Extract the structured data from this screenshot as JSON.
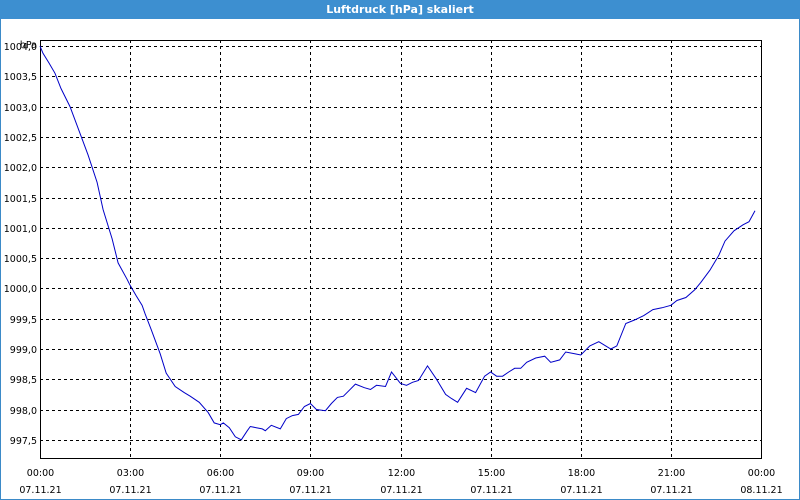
{
  "window": {
    "title": "Luftdruck [hPa] skaliert"
  },
  "chart_data": {
    "type": "line",
    "title": "Luftdruck [hPa] skaliert",
    "ylabel": "hPa",
    "xlabel": "",
    "ylim": [
      997.2,
      1004.1
    ],
    "xlim_hours": [
      0,
      24
    ],
    "grid": true,
    "y_ticks": [
      "1004,0",
      "1003,5",
      "1003,0",
      "1002,5",
      "1002,0",
      "1001,5",
      "1001,0",
      "1000,5",
      "1000,0",
      "999,5",
      "999,0",
      "998,5",
      "998,0",
      "997,5"
    ],
    "x_ticks": [
      {
        "time": "00:00",
        "date": "07.11.21"
      },
      {
        "time": "03:00",
        "date": "07.11.21"
      },
      {
        "time": "06:00",
        "date": "07.11.21"
      },
      {
        "time": "09:00",
        "date": "07.11.21"
      },
      {
        "time": "12:00",
        "date": "07.11.21"
      },
      {
        "time": "15:00",
        "date": "07.11.21"
      },
      {
        "time": "18:00",
        "date": "07.11.21"
      },
      {
        "time": "21:00",
        "date": "07.11.21"
      },
      {
        "time": "00:00",
        "date": "08.11.21"
      }
    ],
    "series": [
      {
        "color": "#0000c8",
        "x": [
          0.0,
          0.1,
          0.3,
          0.5,
          0.7,
          1.0,
          1.3,
          1.6,
          1.9,
          2.1,
          2.4,
          2.6,
          2.9,
          3.0,
          3.2,
          3.4,
          3.5,
          3.7,
          4.0,
          4.2,
          4.5,
          4.8,
          5.0,
          5.3,
          5.6,
          5.8,
          6.0,
          6.1,
          6.3,
          6.5,
          6.7,
          6.9,
          7.0,
          7.2,
          7.4,
          7.5,
          7.7,
          8.0,
          8.2,
          8.4,
          8.6,
          8.8,
          9.0,
          9.2,
          9.5,
          9.7,
          9.9,
          10.1,
          10.3,
          10.5,
          10.8,
          11.0,
          11.2,
          11.5,
          11.7,
          12.0,
          12.2,
          12.4,
          12.6,
          12.9,
          13.2,
          13.5,
          13.7,
          13.9,
          14.2,
          14.5,
          14.8,
          15.0,
          15.2,
          15.4,
          15.6,
          15.8,
          16.0,
          16.2,
          16.5,
          16.8,
          17.0,
          17.3,
          17.5,
          17.8,
          18.0,
          18.3,
          18.6,
          19.0,
          19.2,
          19.5,
          19.8,
          20.1,
          20.4,
          20.7,
          21.0,
          21.2,
          21.5,
          21.8,
          22.0,
          22.3,
          22.6,
          22.8,
          23.1,
          23.4,
          23.6,
          23.8
        ],
        "values": [
          1004.0,
          1003.88,
          1003.72,
          1003.55,
          1003.3,
          1003.0,
          1002.6,
          1002.2,
          1001.75,
          1001.3,
          1000.82,
          1000.42,
          1000.15,
          1000.05,
          999.88,
          999.72,
          999.58,
          999.32,
          998.92,
          998.6,
          998.38,
          998.28,
          998.22,
          998.12,
          997.95,
          997.78,
          997.75,
          997.78,
          997.7,
          997.55,
          997.5,
          997.65,
          997.72,
          997.7,
          997.68,
          997.65,
          997.74,
          997.68,
          997.85,
          997.9,
          997.92,
          998.05,
          998.1,
          998.0,
          997.98,
          998.1,
          998.2,
          998.22,
          998.32,
          998.42,
          998.36,
          998.33,
          998.4,
          998.38,
          998.62,
          998.43,
          998.4,
          998.45,
          998.48,
          998.72,
          998.5,
          998.25,
          998.18,
          998.12,
          998.35,
          998.28,
          998.55,
          998.62,
          998.55,
          998.55,
          998.62,
          998.68,
          998.68,
          998.78,
          998.85,
          998.88,
          998.78,
          998.82,
          998.95,
          998.92,
          998.9,
          999.05,
          999.12,
          999.0,
          999.05,
          999.42,
          999.48,
          999.55,
          999.65,
          999.68,
          999.72,
          999.8,
          999.85,
          999.98,
          1000.1,
          1000.3,
          1000.55,
          1000.78,
          1000.95,
          1001.05,
          1001.1,
          1001.28
        ]
      }
    ]
  }
}
